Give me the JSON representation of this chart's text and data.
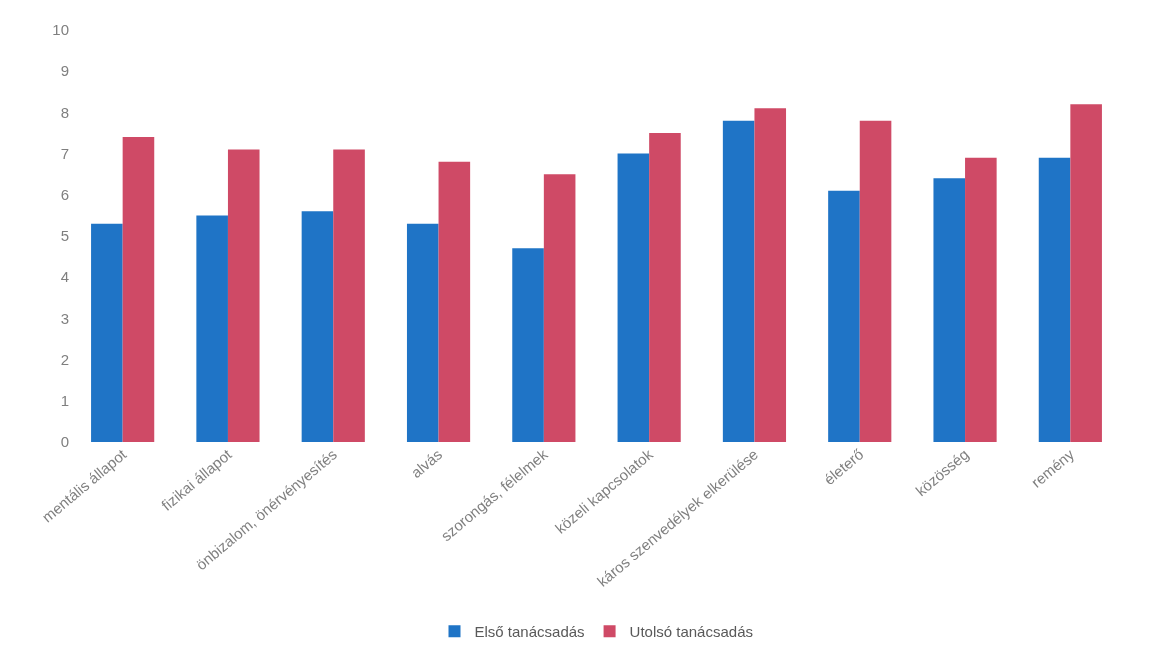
{
  "chart_data": {
    "type": "bar",
    "categories": [
      "mentális állapot",
      "fizikai állapot",
      "önbizalom, önérvényesítés",
      "alvás",
      "szorongás, félelmek",
      "közeli kapcsolatok",
      "káros szenvedélyek elkerülése",
      "életerő",
      "közösség",
      "remény"
    ],
    "series": [
      {
        "name": "Első tanácsadás",
        "color": "#1f74c6",
        "values": [
          5.3,
          5.5,
          5.6,
          5.3,
          4.7,
          7.0,
          7.8,
          6.1,
          6.4,
          6.9
        ]
      },
      {
        "name": "Utolsó tanácsadás",
        "color": "#cf4a66",
        "values": [
          7.4,
          7.1,
          7.1,
          6.8,
          6.5,
          7.5,
          8.1,
          7.8,
          6.9,
          8.2
        ]
      }
    ],
    "ylim": [
      0,
      10
    ],
    "yticks": [
      0,
      1,
      2,
      3,
      4,
      5,
      6,
      7,
      8,
      9,
      10
    ],
    "grid": false,
    "legend": "bottom"
  }
}
